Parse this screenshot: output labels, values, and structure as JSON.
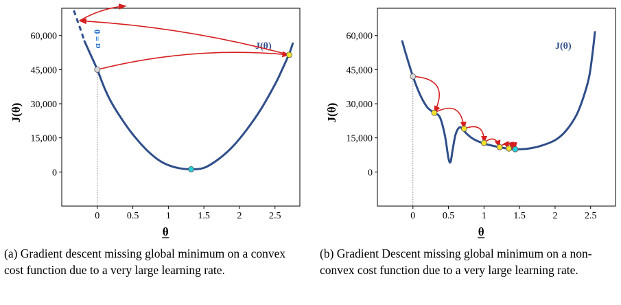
{
  "captions": {
    "a": "(a) Gradient descent missing global minimum on a convex cost function due to a very large learning rate.",
    "b": "(b) Gradient Descent missing global minimum on a non-convex cost function due to a very large learning rate."
  },
  "chart_data": [
    {
      "type": "line",
      "title": "",
      "xlabel": "θ",
      "ylabel": "J(θ)",
      "xlim": [
        -0.5,
        2.85
      ],
      "ylim": [
        -15000,
        72000
      ],
      "xticks": [
        "0",
        "0.5",
        "1",
        "1.5",
        "2",
        "2.5"
      ],
      "yticks": [
        "0",
        "15,000",
        "30,000",
        "45,000",
        "60,000"
      ],
      "grid": false,
      "series": [
        {
          "name": "J(θ)",
          "color": "#2f4e8a",
          "x": [
            -0.18,
            -0.1,
            0.0,
            0.1,
            0.2,
            0.35,
            0.5,
            0.7,
            0.9,
            1.1,
            1.3,
            1.5,
            1.7,
            1.9,
            2.1,
            2.3,
            2.5,
            2.6,
            2.7,
            2.75
          ],
          "y": [
            57500,
            52000,
            45000,
            37000,
            30500,
            23000,
            16500,
            9500,
            4500,
            2000,
            1200,
            1800,
            5500,
            11000,
            18500,
            27500,
            38500,
            45000,
            52000,
            56500
          ]
        }
      ],
      "extrapolation": {
        "style": "dashed",
        "x": [
          -0.33,
          -0.25,
          -0.18
        ],
        "y": [
          71000,
          64000,
          57500
        ]
      },
      "points": [
        {
          "label": "start",
          "x": 0.0,
          "y": 45000,
          "color": "#d8d8d8"
        },
        {
          "label": "step",
          "x": 2.7,
          "y": 51500,
          "color": "#f2e22a"
        },
        {
          "label": "minimum",
          "x": 1.32,
          "y": 1200,
          "color": "#26d0dc"
        }
      ],
      "annotations": [
        "α = 0"
      ],
      "jumps": [
        {
          "from": [
            0.0,
            45000
          ],
          "to": [
            2.7,
            51500
          ]
        },
        {
          "from": [
            2.7,
            51500
          ],
          "to": [
            -0.25,
            66500
          ]
        },
        {
          "from": [
            -0.25,
            66500
          ],
          "to": [
            0.4,
            73000
          ]
        }
      ]
    },
    {
      "type": "line",
      "title": "",
      "xlabel": "θ",
      "ylabel": "J(θ)",
      "xlim": [
        -0.5,
        2.85
      ],
      "ylim": [
        -15000,
        72000
      ],
      "xticks": [
        "0",
        "0.5",
        "1",
        "1.5",
        "2",
        "2.5"
      ],
      "yticks": [
        "0",
        "15,000",
        "30,000",
        "45,000",
        "60,000"
      ],
      "grid": false,
      "series": [
        {
          "name": "J(θ)",
          "color": "#2f4e8a",
          "x": [
            -0.15,
            -0.1,
            0.0,
            0.1,
            0.2,
            0.3,
            0.38,
            0.45,
            0.5,
            0.53,
            0.56,
            0.6,
            0.65,
            0.7,
            0.75,
            0.85,
            1.0,
            1.2,
            1.4,
            1.6,
            1.8,
            2.0,
            2.15,
            2.3,
            2.4,
            2.48,
            2.53,
            2.56
          ],
          "y": [
            57500,
            52000,
            42000,
            34000,
            28500,
            26000,
            24000,
            16000,
            6000,
            4500,
            10000,
            16500,
            19500,
            19000,
            17000,
            14500,
            12500,
            11000,
            10000,
            10200,
            11500,
            14000,
            18000,
            25000,
            33000,
            42000,
            53000,
            61500
          ]
        }
      ],
      "points": [
        {
          "label": "start",
          "x": 0.0,
          "y": 42000,
          "color": "#d8d8d8"
        },
        {
          "label": "step1",
          "x": 0.3,
          "y": 26000,
          "color": "#f2e22a"
        },
        {
          "label": "step2",
          "x": 0.72,
          "y": 19000,
          "color": "#f2e22a"
        },
        {
          "label": "step3",
          "x": 1.0,
          "y": 12800,
          "color": "#f2e22a"
        },
        {
          "label": "step4",
          "x": 1.22,
          "y": 10900,
          "color": "#f2e22a"
        },
        {
          "label": "step5",
          "x": 1.35,
          "y": 10300,
          "color": "#f2e22a"
        },
        {
          "label": "end",
          "x": 1.44,
          "y": 10000,
          "color": "#26d0dc"
        }
      ],
      "jumps": [
        {
          "from": [
            0.0,
            42000
          ],
          "to": [
            0.3,
            26000
          ]
        },
        {
          "from": [
            0.3,
            26000
          ],
          "to": [
            0.72,
            19000
          ]
        },
        {
          "from": [
            0.72,
            19000
          ],
          "to": [
            1.0,
            12800
          ]
        },
        {
          "from": [
            1.0,
            12800
          ],
          "to": [
            1.22,
            10900
          ]
        },
        {
          "from": [
            1.22,
            10900
          ],
          "to": [
            1.35,
            10300
          ]
        },
        {
          "from": [
            1.35,
            10300
          ],
          "to": [
            1.4,
            10100
          ]
        },
        {
          "from": [
            1.4,
            10100
          ],
          "to": [
            1.44,
            10000
          ]
        }
      ]
    }
  ]
}
